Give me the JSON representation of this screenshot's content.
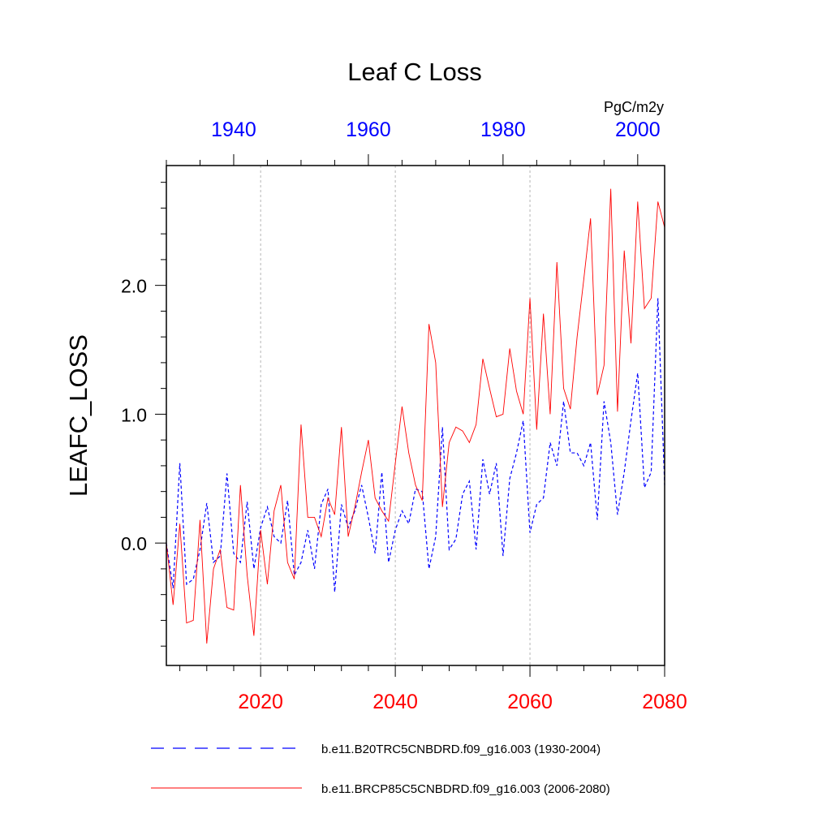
{
  "chart_data": {
    "type": "line",
    "title": "Leaf C Loss",
    "ylabel": "LEAFC_LOSS",
    "units": "PgC/m2y",
    "ylim": [
      -0.95,
      2.93
    ],
    "y_ticks": [
      0.0,
      1.0,
      2.0
    ],
    "y_tick_labels": [
      "0.0",
      "1.0",
      "2.0"
    ],
    "grid": "vertical dotted lines at bottom-axis major ticks",
    "bottom_axis": {
      "xlim": [
        2006,
        2080
      ],
      "ticks": [
        2020,
        2040,
        2060,
        2080
      ],
      "tick_labels": [
        "2020",
        "2040",
        "2060",
        "2080"
      ],
      "color": "#ff0000"
    },
    "top_axis": {
      "xlim": [
        1930,
        2004
      ],
      "ticks": [
        1940,
        1960,
        1980,
        2000
      ],
      "tick_labels": [
        "1940",
        "1960",
        "1980",
        "2000"
      ],
      "color": "#0000ff"
    },
    "legend_placement": "bottom",
    "series": [
      {
        "name": "b.e11.B20TRC5CNBDRD.f09_g16.003 (1930-2004)",
        "axis": "top",
        "color": "#0000ff",
        "style": "dashed",
        "x_start": 1930,
        "values": [
          0.0,
          -0.35,
          0.62,
          -0.32,
          -0.28,
          -0.05,
          0.31,
          -0.15,
          -0.1,
          0.54,
          -0.08,
          -0.15,
          0.32,
          -0.2,
          0.12,
          0.28,
          0.05,
          0.0,
          0.33,
          -0.25,
          -0.15,
          0.1,
          -0.2,
          0.3,
          0.42,
          -0.38,
          0.3,
          0.12,
          0.25,
          0.45,
          0.2,
          -0.08,
          0.55,
          -0.15,
          0.1,
          0.25,
          0.15,
          0.42,
          0.4,
          -0.2,
          0.05,
          0.9,
          -0.05,
          0.03,
          0.38,
          0.48,
          -0.05,
          0.65,
          0.38,
          0.62,
          -0.1,
          0.5,
          0.7,
          0.95,
          0.08,
          0.3,
          0.35,
          0.78,
          0.6,
          1.1,
          0.7,
          0.7,
          0.6,
          0.78,
          0.18,
          1.1,
          0.78,
          0.22,
          0.55,
          0.95,
          1.32,
          0.43,
          0.55,
          1.9,
          0.45
        ]
      },
      {
        "name": "b.e11.BRCP85C5CNBDRD.f09_g16.003 (2006-2080)",
        "axis": "bottom",
        "color": "#ff0000",
        "style": "solid",
        "x_start": 2006,
        "values": [
          0.0,
          -0.48,
          0.15,
          -0.62,
          -0.6,
          0.18,
          -0.78,
          -0.2,
          -0.05,
          -0.5,
          -0.52,
          0.45,
          -0.25,
          -0.72,
          0.1,
          -0.32,
          0.25,
          0.45,
          -0.15,
          -0.28,
          0.92,
          0.2,
          0.2,
          0.05,
          0.35,
          0.22,
          0.9,
          0.05,
          0.28,
          0.55,
          0.8,
          0.35,
          0.25,
          0.17,
          0.62,
          1.06,
          0.7,
          0.45,
          0.33,
          1.7,
          1.4,
          0.28,
          0.78,
          0.9,
          0.87,
          0.78,
          0.92,
          1.43,
          1.2,
          0.98,
          1.0,
          1.51,
          1.18,
          1.0,
          1.9,
          0.88,
          1.78,
          1.0,
          2.18,
          1.2,
          1.04,
          1.6,
          2.05,
          2.52,
          1.15,
          1.38,
          2.75,
          1.02,
          2.27,
          1.55,
          2.65,
          1.82,
          1.9,
          2.65,
          2.45
        ]
      }
    ]
  }
}
